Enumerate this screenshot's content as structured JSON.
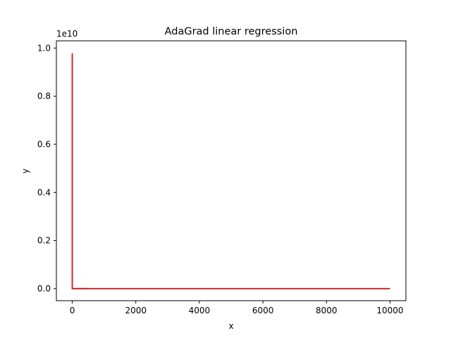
{
  "chart_data": {
    "type": "line",
    "title": "AdaGrad linear regression",
    "xlabel": "x",
    "ylabel": "y",
    "y_offset_label": "1e10",
    "y_scale": 10000000000,
    "xlim": [
      -500,
      10500
    ],
    "ylim": [
      -0.05,
      1.03
    ],
    "x_ticks": [
      0,
      2000,
      4000,
      6000,
      8000,
      10000
    ],
    "x_tick_labels": [
      "0",
      "2000",
      "4000",
      "6000",
      "8000",
      "10000"
    ],
    "y_ticks": [
      0.0,
      0.2,
      0.4,
      0.6,
      0.8,
      1.0
    ],
    "y_tick_labels": [
      "0.0",
      "0.2",
      "0.4",
      "0.6",
      "0.8",
      "1.0"
    ],
    "grid": false,
    "series": [
      {
        "color": "#2ca02c",
        "x": [
          0,
          500
        ],
        "y": [
          0.0,
          0.0
        ]
      },
      {
        "color": "#d62728",
        "x": [
          0,
          0,
          20,
          100,
          500,
          10000
        ],
        "y": [
          0.978,
          0.0,
          0.0,
          0.0,
          0.0,
          0.0
        ]
      }
    ]
  }
}
